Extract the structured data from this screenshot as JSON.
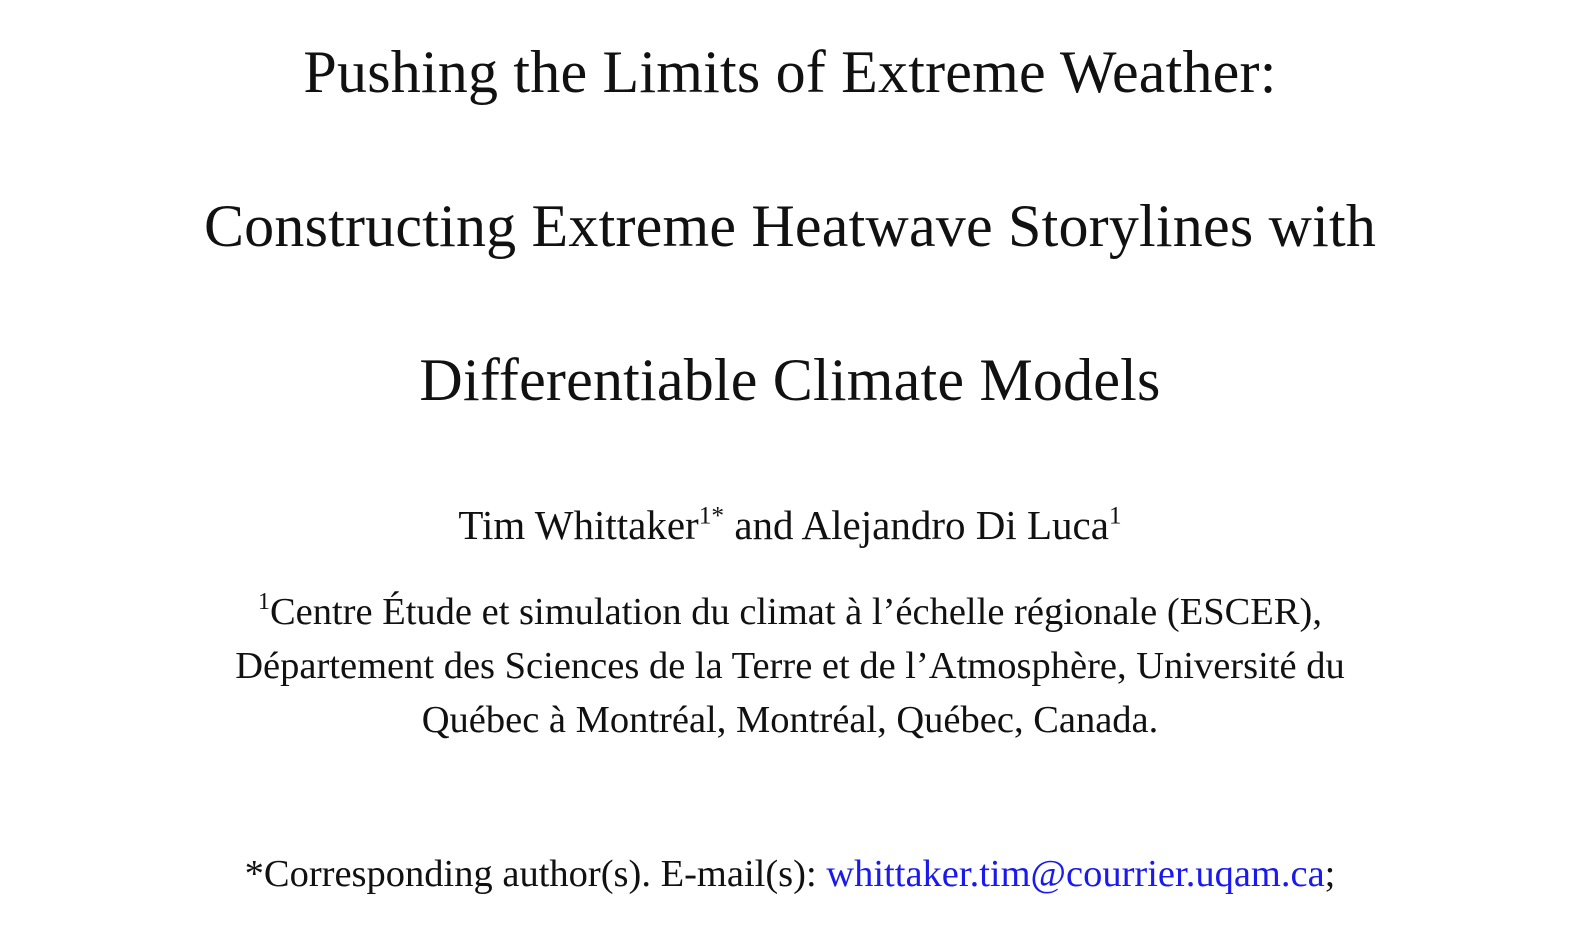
{
  "title": {
    "line1": "Pushing the Limits of Extreme Weather:",
    "line2": "Constructing Extreme Heatwave Storylines with",
    "line3": "Differentiable Climate Models"
  },
  "authors": {
    "author1": "Tim Whittaker",
    "author1_marks": "1*",
    "conjunction": " and ",
    "author2": "Alejandro Di Luca",
    "author2_marks": "1"
  },
  "affiliation": {
    "marker": "1",
    "line1": "Centre Étude et simulation du climat à l’échelle régionale (ESCER),",
    "line2": "Département des Sciences de la Terre et de l’Atmosphère, Université du",
    "line3": "Québec à Montréal, Montréal, Québec, Canada."
  },
  "correspondence": {
    "prefix": "*Corresponding author(s). E-mail(s): ",
    "email": "whittaker.tim@courrier.uqam.ca",
    "suffix": ";"
  },
  "colors": {
    "link": "#1a1aee",
    "text": "#111111"
  }
}
